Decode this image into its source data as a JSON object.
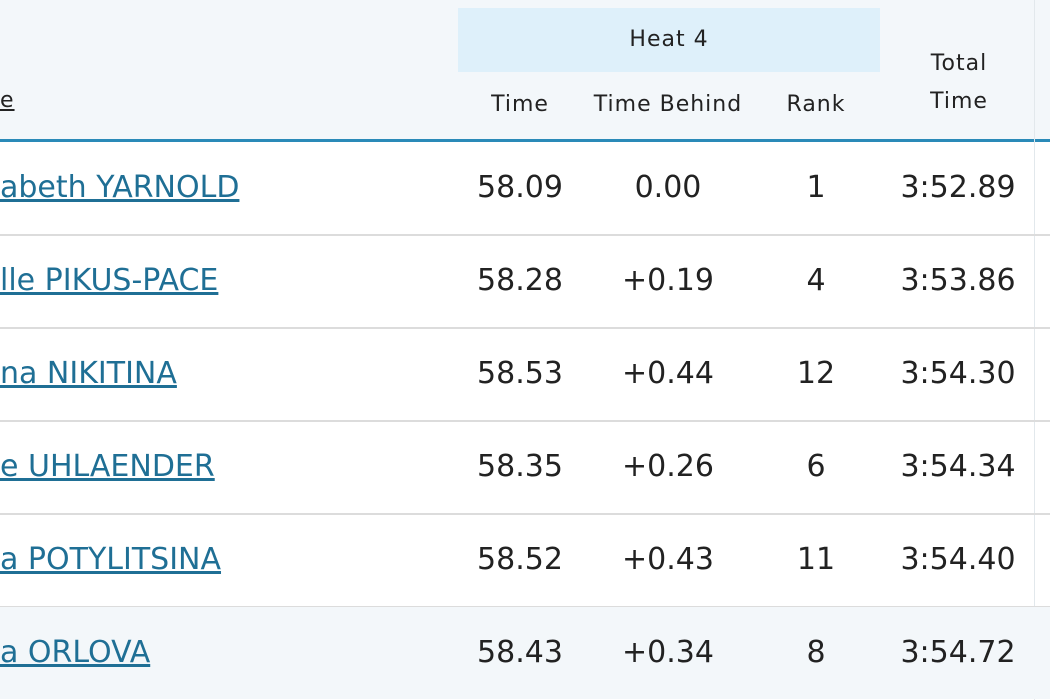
{
  "table": {
    "header": {
      "name": "e",
      "group": "Heat 4",
      "columns": [
        "Time",
        "Time Behind",
        "Rank"
      ],
      "total": "Total Time"
    },
    "rows": [
      [
        "abeth YARNOLD",
        "58.09",
        "0.00",
        "1",
        "3:52.89"
      ],
      [
        "lle PIKUS-PACE",
        "58.28",
        "+0.19",
        "4",
        "3:53.86"
      ],
      [
        "na NIKITINA",
        "58.53",
        "+0.44",
        "12",
        "3:54.30"
      ],
      [
        "e UHLAENDER",
        "58.35",
        "+0.26",
        "6",
        "3:54.34"
      ],
      [
        "a POTYLITSINA",
        "58.52",
        "+0.43",
        "11",
        "3:54.40"
      ],
      [
        "a ORLOVA",
        "58.43",
        "+0.34",
        "8",
        "3:54.72"
      ]
    ]
  }
}
